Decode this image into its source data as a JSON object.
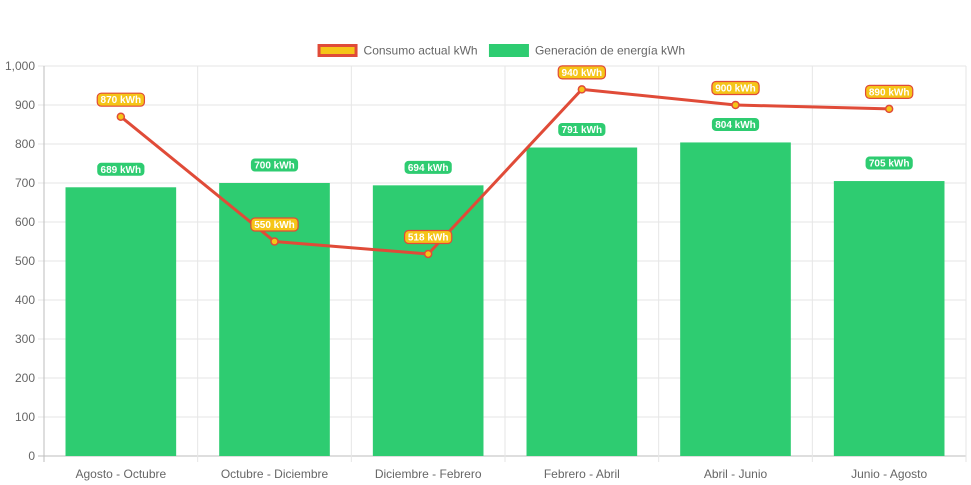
{
  "chart_data": {
    "type": "bar",
    "categories": [
      "Agosto - Octubre",
      "Octubre - Diciembre",
      "Diciembre - Febrero",
      "Febrero - Abril",
      "Abril - Junio",
      "Junio - Agosto"
    ],
    "series": [
      {
        "name": "Consumo actual kWh",
        "type": "line",
        "values": [
          870,
          550,
          518,
          940,
          900,
          890
        ],
        "color": "#e04b38",
        "fill": "#f5c518",
        "labels": [
          "870 kWh",
          "550 kWh",
          "518 kWh",
          "940 kWh",
          "900 kWh",
          "890 kWh"
        ]
      },
      {
        "name": "Generación de energía kWh",
        "type": "bar",
        "values": [
          689,
          700,
          694,
          791,
          804,
          705
        ],
        "color": "#2ecc71",
        "labels": [
          "689 kWh",
          "700 kWh",
          "694 kWh",
          "791 kWh",
          "804 kWh",
          "705 kWh"
        ]
      }
    ],
    "ylim": [
      0,
      1000
    ],
    "yticks": [
      "0",
      "100",
      "200",
      "300",
      "400",
      "500",
      "600",
      "700",
      "800",
      "900",
      "1,000"
    ],
    "grid": true,
    "legend": "top-center",
    "title": "",
    "xlabel": "",
    "ylabel": ""
  }
}
